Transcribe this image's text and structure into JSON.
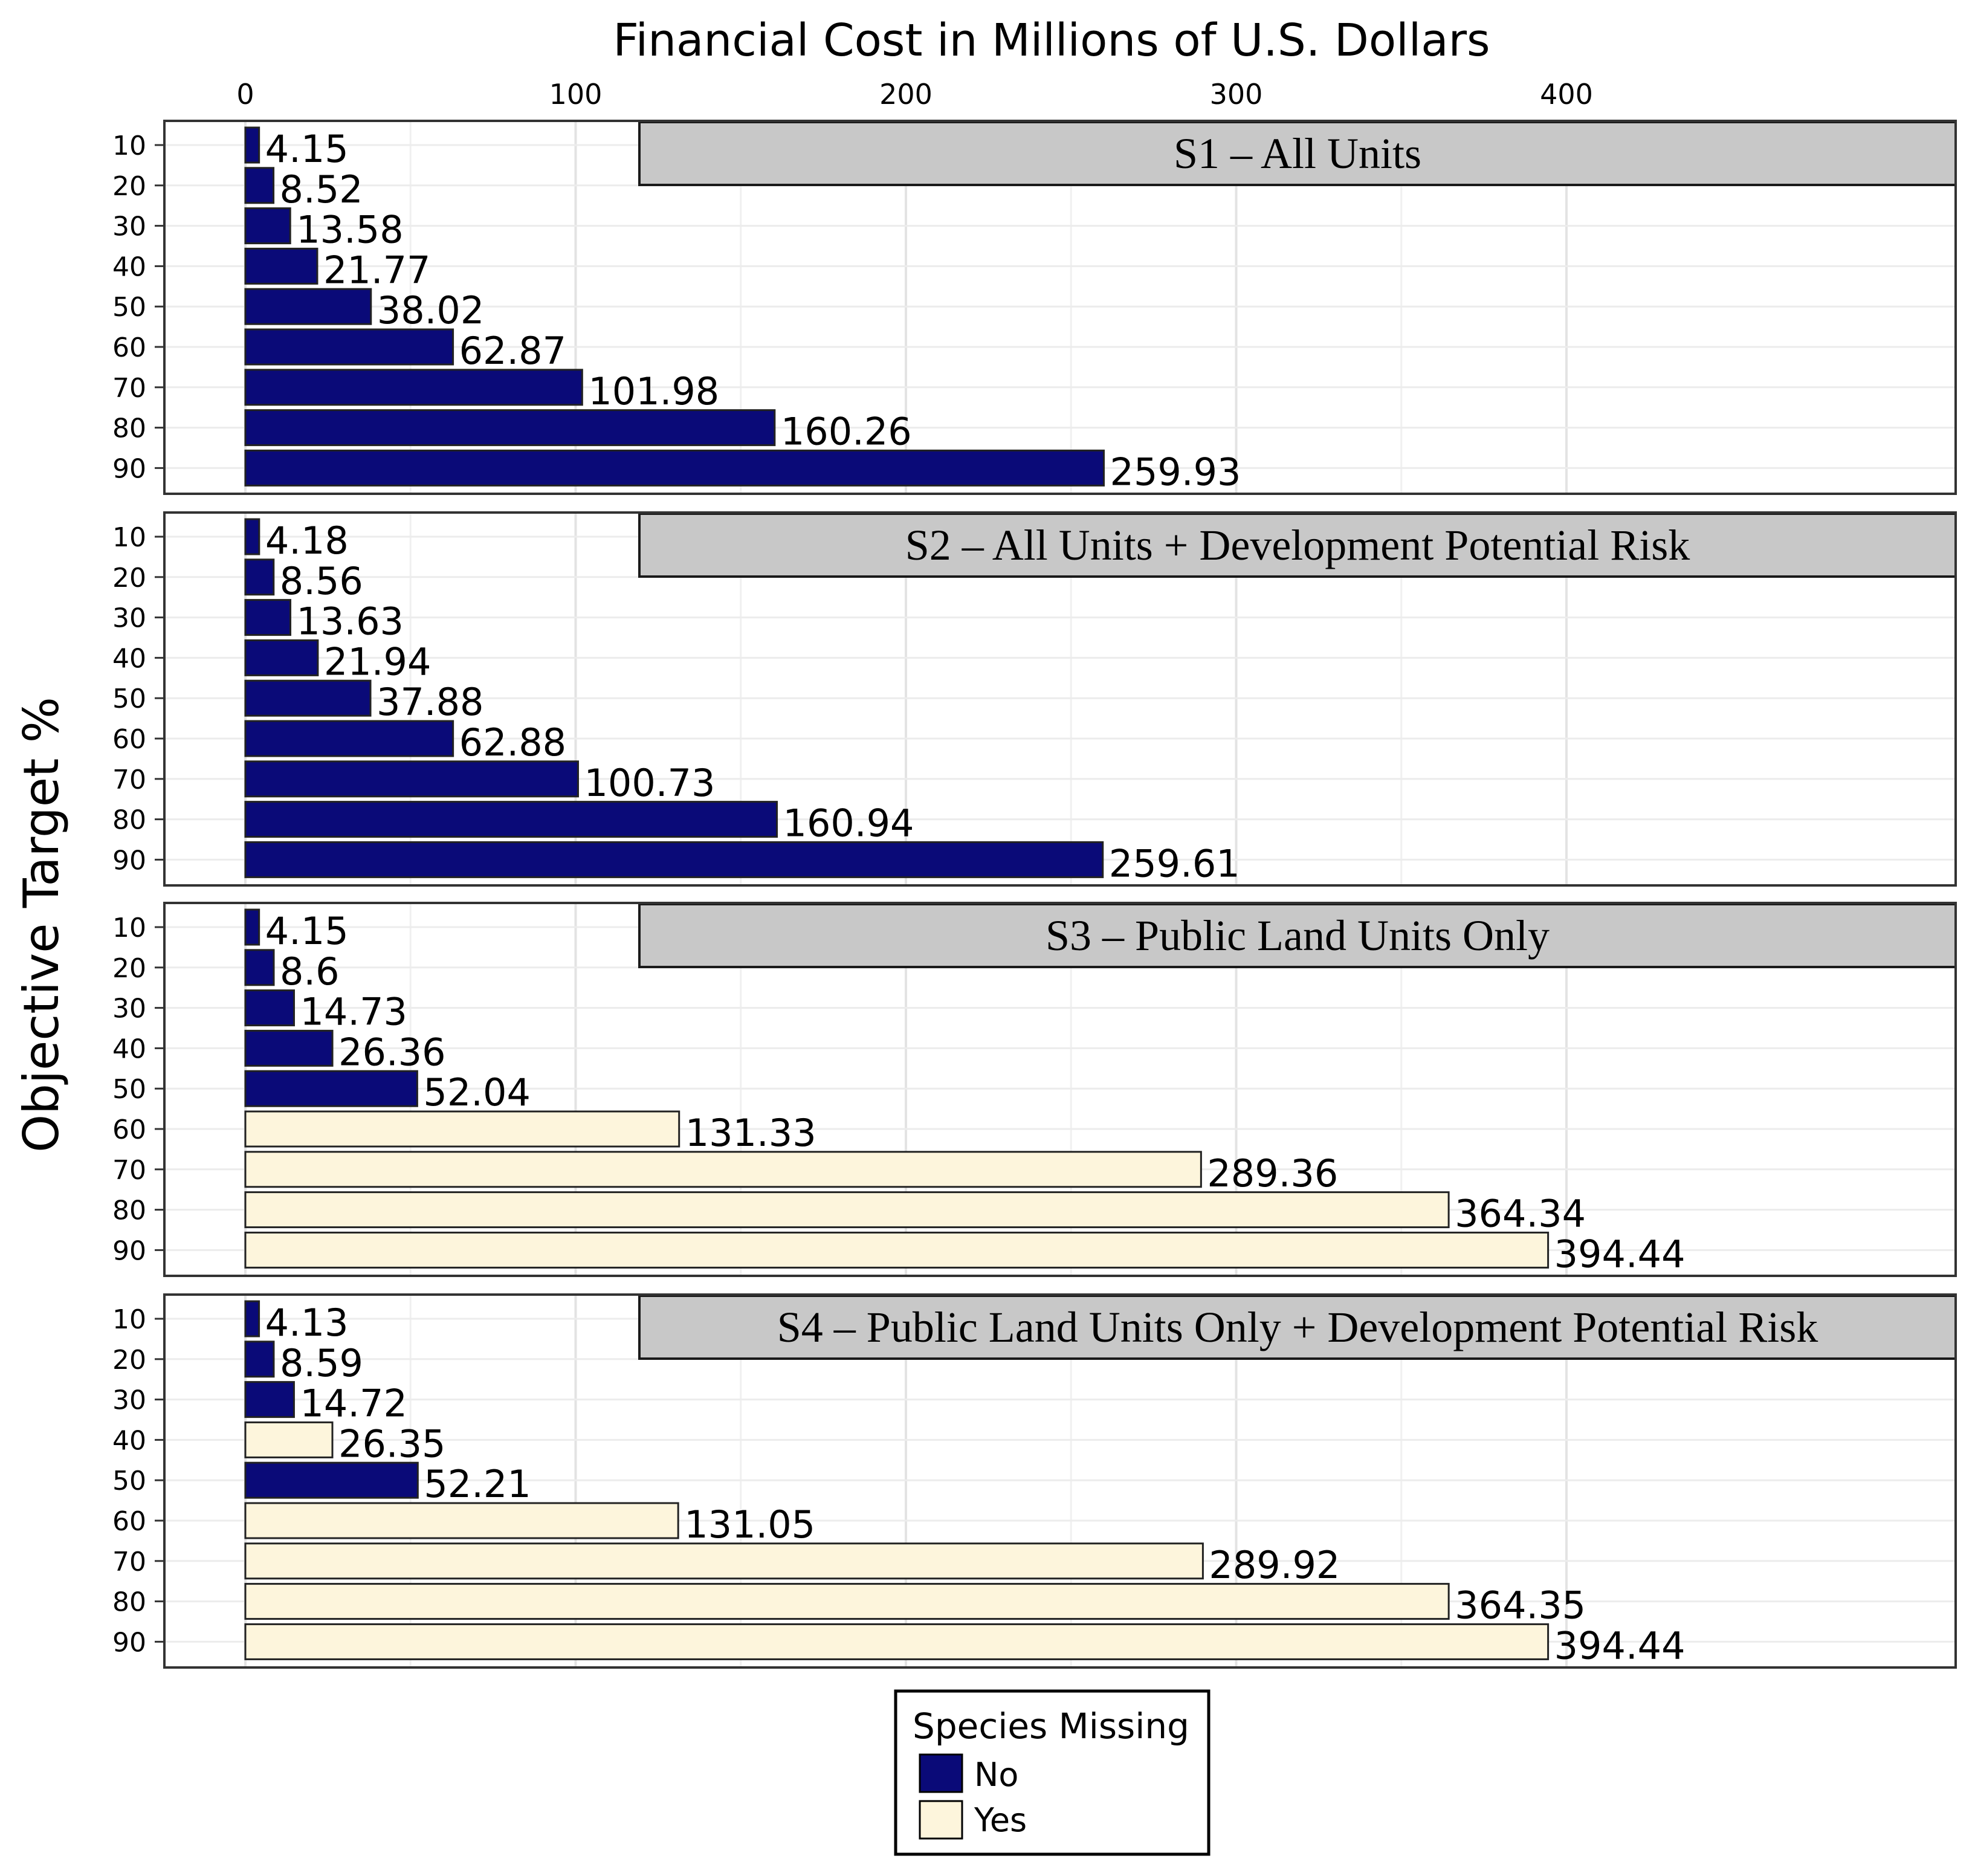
{
  "chart_data": {
    "type": "bar",
    "orientation": "horizontal",
    "title": "Financial Cost in Millions of U.S. Dollars",
    "xlabel": "Financial Cost in Millions of U.S. Dollars",
    "ylabel": "Objective Target %",
    "xlim": [
      -8,
      437
    ],
    "x_ticks": [
      0,
      100,
      200,
      300,
      400
    ],
    "x_tick_labels": [
      "0",
      "100",
      "200",
      "300",
      "400"
    ],
    "x_axis_position": "top",
    "categories": [
      "10",
      "20",
      "30",
      "40",
      "50",
      "60",
      "70",
      "80",
      "90"
    ],
    "grid": true,
    "legend": {
      "title": "Species Missing",
      "position": "bottom",
      "items": [
        {
          "label": "No",
          "color": "#0a0a78"
        },
        {
          "label": "Yes",
          "color": "#fdf5dc"
        }
      ]
    },
    "panels": [
      {
        "title": "S1 – All Units",
        "values": [
          4.15,
          8.52,
          13.58,
          21.77,
          38.02,
          62.87,
          101.98,
          160.26,
          259.93
        ],
        "labels": [
          "4.15",
          "8.52",
          "13.58",
          "21.77",
          "38.02",
          "62.87",
          "101.98",
          "160.26",
          "259.93"
        ],
        "species_missing": [
          "No",
          "No",
          "No",
          "No",
          "No",
          "No",
          "No",
          "No",
          "No"
        ]
      },
      {
        "title": "S2 – All Units + Development Potential Risk",
        "values": [
          4.18,
          8.56,
          13.63,
          21.94,
          37.88,
          62.88,
          100.73,
          160.94,
          259.61
        ],
        "labels": [
          "4.18",
          "8.56",
          "13.63",
          "21.94",
          "37.88",
          "62.88",
          "100.73",
          "160.94",
          "259.61"
        ],
        "species_missing": [
          "No",
          "No",
          "No",
          "No",
          "No",
          "No",
          "No",
          "No",
          "No"
        ]
      },
      {
        "title": "S3 – Public Land Units Only",
        "values": [
          4.15,
          8.6,
          14.73,
          26.36,
          52.04,
          131.33,
          289.36,
          364.34,
          394.44
        ],
        "labels": [
          "4.15",
          "8.6",
          "14.73",
          "26.36",
          "52.04",
          "131.33",
          "289.36",
          "364.34",
          "394.44"
        ],
        "species_missing": [
          "No",
          "No",
          "No",
          "No",
          "No",
          "Yes",
          "Yes",
          "Yes",
          "Yes"
        ]
      },
      {
        "title": "S4 – Public Land Units Only + Development Potential Risk",
        "values": [
          4.13,
          8.59,
          14.72,
          26.35,
          52.21,
          131.05,
          289.92,
          364.35,
          394.44
        ],
        "labels": [
          "4.13",
          "8.59",
          "14.72",
          "26.35",
          "52.21",
          "131.05",
          "289.92",
          "364.35",
          "394.44"
        ],
        "species_missing": [
          "No",
          "No",
          "No",
          "Yes",
          "No",
          "Yes",
          "Yes",
          "Yes",
          "Yes"
        ]
      }
    ]
  }
}
